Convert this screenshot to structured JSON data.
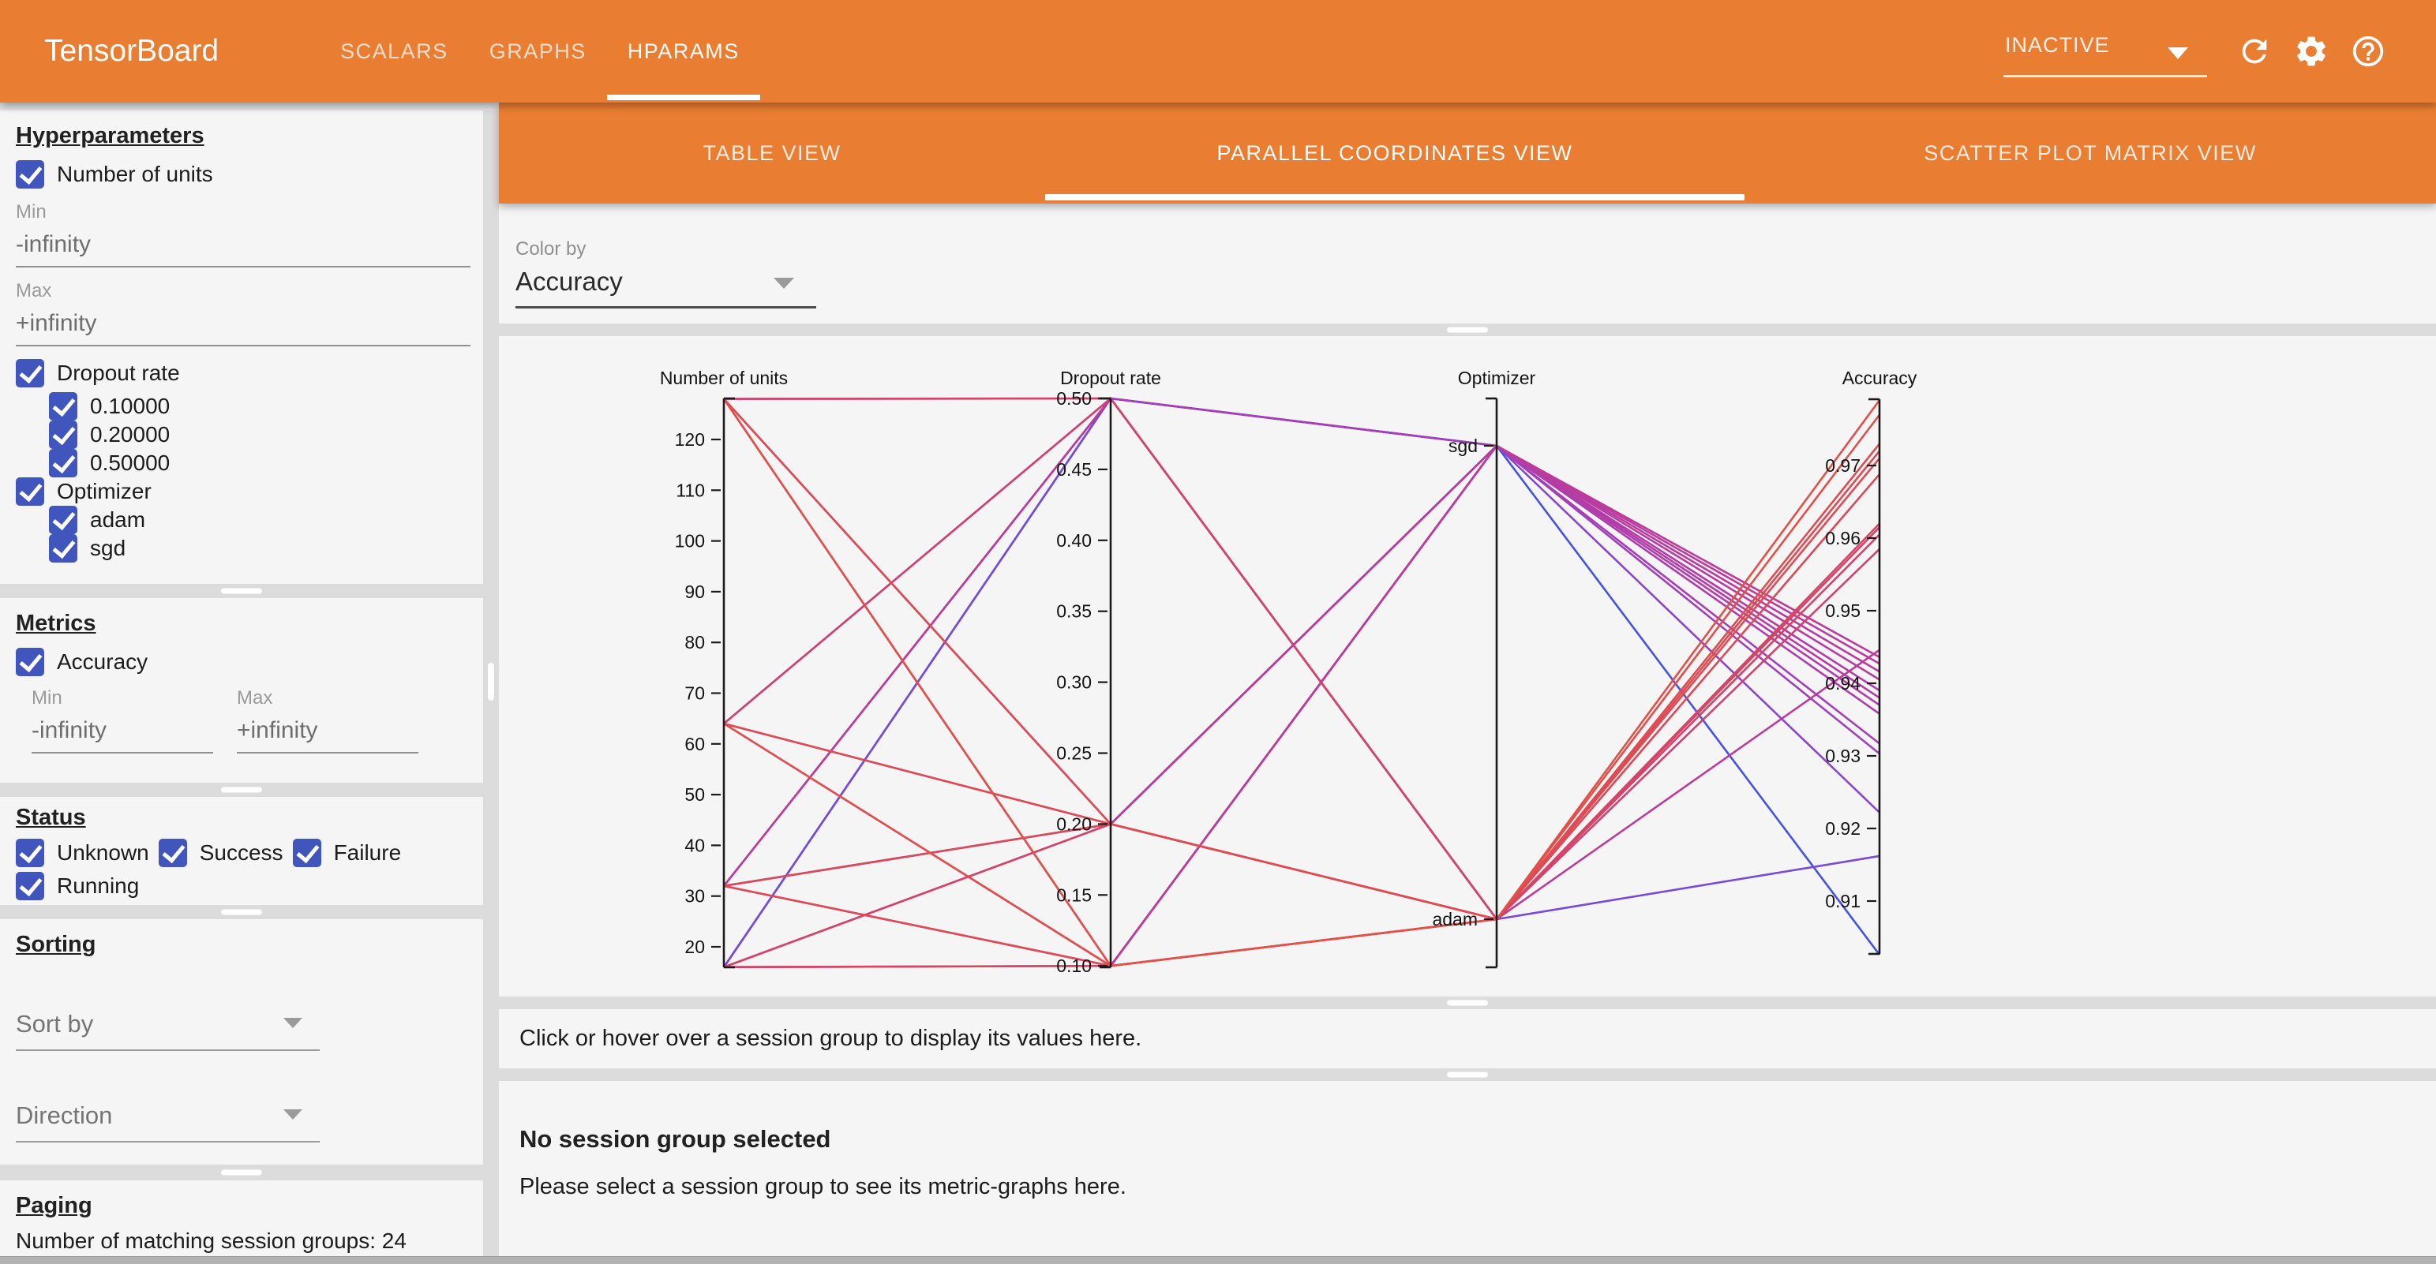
{
  "app_bar": {
    "title": "TensorBoard",
    "tabs": [
      {
        "label": "SCALARS",
        "active": false
      },
      {
        "label": "GRAPHS",
        "active": false
      },
      {
        "label": "HPARAMS",
        "active": true
      }
    ],
    "run_selector": {
      "value": "INACTIVE"
    },
    "icons": [
      "refresh",
      "settings",
      "help"
    ]
  },
  "sidebar": {
    "hyperparameters": {
      "heading": "Hyperparameters",
      "number_of_units": {
        "label": "Number of units",
        "checked": true,
        "min_label": "Min",
        "min_value": "-infinity",
        "max_label": "Max",
        "max_value": "+infinity"
      },
      "dropout_rate": {
        "label": "Dropout rate",
        "checked": true,
        "values": [
          {
            "label": "0.10000",
            "checked": true
          },
          {
            "label": "0.20000",
            "checked": true
          },
          {
            "label": "0.50000",
            "checked": true
          }
        ]
      },
      "optimizer": {
        "label": "Optimizer",
        "checked": true,
        "values": [
          {
            "label": "adam",
            "checked": true
          },
          {
            "label": "sgd",
            "checked": true
          }
        ]
      }
    },
    "metrics": {
      "heading": "Metrics",
      "accuracy": {
        "label": "Accuracy",
        "checked": true,
        "min_label": "Min",
        "min_value": "-infinity",
        "max_label": "Max",
        "max_value": "+infinity"
      }
    },
    "status": {
      "heading": "Status",
      "options": [
        {
          "label": "Unknown",
          "checked": true
        },
        {
          "label": "Success",
          "checked": true
        },
        {
          "label": "Failure",
          "checked": true
        },
        {
          "label": "Running",
          "checked": true
        }
      ]
    },
    "sorting": {
      "heading": "Sorting",
      "sort_by_placeholder": "Sort by",
      "direction_placeholder": "Direction"
    },
    "paging": {
      "heading": "Paging",
      "summary": "Number of matching session groups: 24"
    }
  },
  "main": {
    "view_tabs": [
      {
        "label": "TABLE VIEW",
        "active": false
      },
      {
        "label": "PARALLEL COORDINATES VIEW",
        "active": true
      },
      {
        "label": "SCATTER PLOT MATRIX VIEW",
        "active": false
      }
    ],
    "color_by": {
      "label": "Color by",
      "value": "Accuracy"
    },
    "hint": "Click or hover over a session group to display its values here.",
    "empty_state": {
      "title": "No session group selected",
      "subtitle": "Please select a session group to see its metric-graphs here."
    }
  },
  "chart_data": {
    "type": "parallel_coordinates",
    "color_by": "Accuracy",
    "color_scale": {
      "min": 0.9026,
      "max": 0.979,
      "stops": [
        "#4353e2",
        "#7d49d6",
        "#a93eb5",
        "#c43a8e",
        "#d84660",
        "#e25048"
      ]
    },
    "axes": [
      {
        "name": "Number of units",
        "type": "numeric",
        "domain": [
          16,
          128
        ],
        "ticks": [
          {
            "v": 20,
            "label": "20"
          },
          {
            "v": 30,
            "label": "30"
          },
          {
            "v": 40,
            "label": "40"
          },
          {
            "v": 50,
            "label": "50"
          },
          {
            "v": 60,
            "label": "60"
          },
          {
            "v": 70,
            "label": "70"
          },
          {
            "v": 80,
            "label": "80"
          },
          {
            "v": 90,
            "label": "90"
          },
          {
            "v": 100,
            "label": "100"
          },
          {
            "v": 110,
            "label": "110"
          },
          {
            "v": 120,
            "label": "120"
          }
        ]
      },
      {
        "name": "Dropout rate",
        "type": "numeric",
        "domain": [
          0.1,
          0.5
        ],
        "ticks": [
          {
            "v": 0.1,
            "label": "0.10"
          },
          {
            "v": 0.15,
            "label": "0.15"
          },
          {
            "v": 0.2,
            "label": "0.20"
          },
          {
            "v": 0.25,
            "label": "0.25"
          },
          {
            "v": 0.3,
            "label": "0.30"
          },
          {
            "v": 0.35,
            "label": "0.35"
          },
          {
            "v": 0.4,
            "label": "0.40"
          },
          {
            "v": 0.45,
            "label": "0.45"
          },
          {
            "v": 0.5,
            "label": "0.50"
          }
        ]
      },
      {
        "name": "Optimizer",
        "type": "categorical",
        "categories": [
          "sgd",
          "adam"
        ]
      },
      {
        "name": "Accuracy",
        "type": "numeric",
        "domain": [
          0.9027,
          0.9791
        ],
        "ticks": [
          {
            "v": 0.91,
            "label": "0.91"
          },
          {
            "v": 0.92,
            "label": "0.92"
          },
          {
            "v": 0.93,
            "label": "0.93"
          },
          {
            "v": 0.94,
            "label": "0.94"
          },
          {
            "v": 0.95,
            "label": "0.95"
          },
          {
            "v": 0.96,
            "label": "0.96"
          },
          {
            "v": 0.97,
            "label": "0.97"
          }
        ]
      }
    ],
    "sessions": [
      {
        "number_of_units": 128,
        "dropout_rate": 0.1,
        "optimizer": "adam",
        "accuracy": 0.979
      },
      {
        "number_of_units": 64,
        "dropout_rate": 0.1,
        "optimizer": "adam",
        "accuracy": 0.977
      },
      {
        "number_of_units": 128,
        "dropout_rate": 0.2,
        "optimizer": "adam",
        "accuracy": 0.973
      },
      {
        "number_of_units": 64,
        "dropout_rate": 0.2,
        "optimizer": "adam",
        "accuracy": 0.972
      },
      {
        "number_of_units": 32,
        "dropout_rate": 0.1,
        "optimizer": "adam",
        "accuracy": 0.971
      },
      {
        "number_of_units": 32,
        "dropout_rate": 0.2,
        "optimizer": "adam",
        "accuracy": 0.9688
      },
      {
        "number_of_units": 16,
        "dropout_rate": 0.1,
        "optimizer": "adam",
        "accuracy": 0.962
      },
      {
        "number_of_units": 16,
        "dropout_rate": 0.2,
        "optimizer": "adam",
        "accuracy": 0.9615
      },
      {
        "number_of_units": 128,
        "dropout_rate": 0.5,
        "optimizer": "adam",
        "accuracy": 0.9605
      },
      {
        "number_of_units": 64,
        "dropout_rate": 0.5,
        "optimizer": "adam",
        "accuracy": 0.9585
      },
      {
        "number_of_units": 32,
        "dropout_rate": 0.5,
        "optimizer": "adam",
        "accuracy": 0.9446
      },
      {
        "number_of_units": 16,
        "dropout_rate": 0.5,
        "optimizer": "adam",
        "accuracy": 0.9162
      },
      {
        "number_of_units": 128,
        "dropout_rate": 0.1,
        "optimizer": "sgd",
        "accuracy": 0.9436
      },
      {
        "number_of_units": 64,
        "dropout_rate": 0.1,
        "optimizer": "sgd",
        "accuracy": 0.9427
      },
      {
        "number_of_units": 128,
        "dropout_rate": 0.2,
        "optimizer": "sgd",
        "accuracy": 0.9416
      },
      {
        "number_of_units": 64,
        "dropout_rate": 0.2,
        "optimizer": "sgd",
        "accuracy": 0.9405
      },
      {
        "number_of_units": 32,
        "dropout_rate": 0.1,
        "optimizer": "sgd",
        "accuracy": 0.939
      },
      {
        "number_of_units": 16,
        "dropout_rate": 0.1,
        "optimizer": "sgd",
        "accuracy": 0.938
      },
      {
        "number_of_units": 32,
        "dropout_rate": 0.2,
        "optimizer": "sgd",
        "accuracy": 0.937
      },
      {
        "number_of_units": 16,
        "dropout_rate": 0.2,
        "optimizer": "sgd",
        "accuracy": 0.9358
      },
      {
        "number_of_units": 128,
        "dropout_rate": 0.5,
        "optimizer": "sgd",
        "accuracy": 0.9317
      },
      {
        "number_of_units": 64,
        "dropout_rate": 0.5,
        "optimizer": "sgd",
        "accuracy": 0.9303
      },
      {
        "number_of_units": 32,
        "dropout_rate": 0.5,
        "optimizer": "sgd",
        "accuracy": 0.9222
      },
      {
        "number_of_units": 16,
        "dropout_rate": 0.5,
        "optimizer": "sgd",
        "accuracy": 0.9026
      }
    ]
  }
}
